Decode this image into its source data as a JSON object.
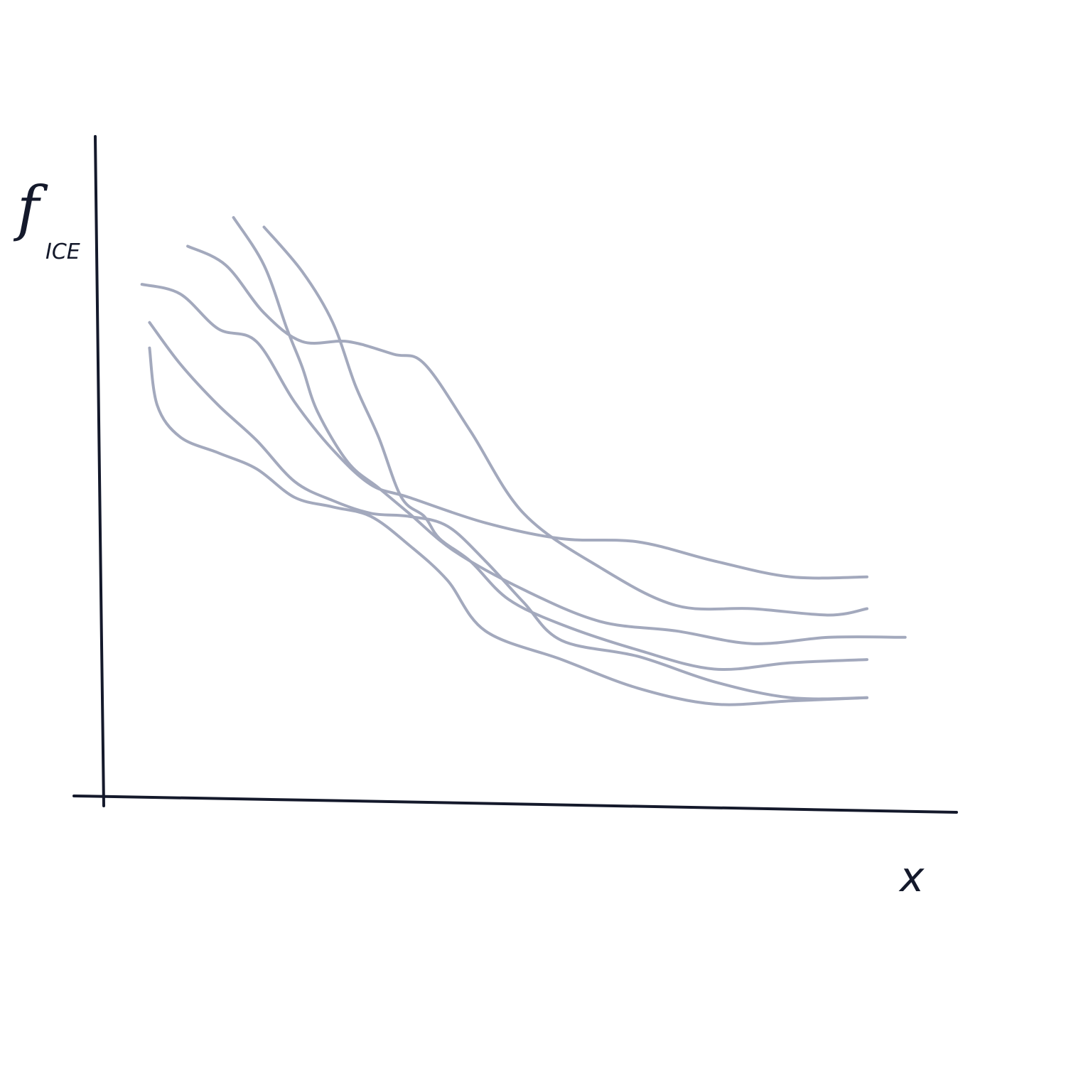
{
  "chart_data": {
    "type": "line",
    "title": "",
    "ylabel": "f",
    "ylabel_subscript": "ICE",
    "xlabel": "x",
    "xlim": [
      0,
      10
    ],
    "ylim": [
      0,
      10
    ],
    "grid": false,
    "legend": "none",
    "axis_color": "#14192b",
    "line_color": "#a3a9bd",
    "series": [
      {
        "x": [
          0.5,
          1.0,
          1.5,
          2.0,
          2.5,
          3.0,
          3.5,
          4.0,
          5.0,
          6.0,
          7.0,
          8.0,
          9.0,
          10.0
        ],
        "values": [
          8.1,
          7.95,
          7.4,
          7.2,
          6.25,
          5.5,
          4.95,
          4.75,
          4.35,
          4.1,
          4.05,
          3.75,
          3.5,
          3.5
        ]
      },
      {
        "x": [
          1.1,
          1.6,
          2.1,
          2.6,
          3.2,
          3.8,
          4.2,
          4.8,
          5.5,
          6.5,
          7.5,
          8.5,
          9.5,
          10.0
        ],
        "values": [
          8.7,
          8.4,
          7.65,
          7.2,
          7.2,
          7.0,
          6.85,
          5.8,
          4.5,
          3.65,
          3.05,
          3.0,
          2.9,
          3.0
        ]
      },
      {
        "x": [
          1.7,
          2.1,
          2.4,
          2.6,
          2.8,
          3.2,
          3.6,
          4.0,
          4.6,
          5.5,
          6.5,
          7.5,
          8.5,
          9.5,
          10.5
        ],
        "values": [
          9.15,
          8.4,
          7.4,
          6.8,
          6.1,
          5.3,
          4.9,
          4.5,
          3.9,
          3.3,
          2.8,
          2.65,
          2.45,
          2.55,
          2.55
        ]
      },
      {
        "x": [
          2.1,
          2.6,
          3.0,
          3.3,
          3.6,
          3.9,
          4.2,
          4.4,
          4.8,
          5.3,
          6.0,
          7.0,
          8.0,
          9.0,
          10.0
        ],
        "values": [
          9.0,
          8.3,
          7.5,
          6.5,
          5.7,
          4.75,
          4.45,
          4.1,
          3.75,
          3.15,
          2.75,
          2.35,
          2.05,
          2.15,
          2.2
        ]
      },
      {
        "x": [
          0.6,
          1.0,
          1.5,
          2.0,
          2.5,
          3.0,
          3.5,
          4.0,
          4.5,
          5.0,
          5.5,
          6.0,
          7.0,
          8.0,
          9.0,
          10.0
        ],
        "values": [
          7.5,
          6.85,
          6.2,
          5.65,
          5.0,
          4.7,
          4.5,
          4.45,
          4.3,
          3.75,
          3.1,
          2.5,
          2.25,
          1.85,
          1.6,
          1.6
        ]
      },
      {
        "x": [
          0.6,
          0.7,
          1.0,
          1.5,
          2.0,
          2.5,
          3.0,
          3.5,
          4.0,
          4.5,
          5.0,
          6.0,
          7.0,
          8.0,
          9.0,
          10.0
        ],
        "values": [
          7.1,
          6.2,
          5.7,
          5.45,
          5.2,
          4.75,
          4.6,
          4.45,
          4.0,
          3.45,
          2.65,
          2.2,
          1.75,
          1.5,
          1.55,
          1.6
        ]
      }
    ]
  }
}
